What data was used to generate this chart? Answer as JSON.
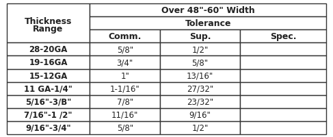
{
  "title_main": "Over 48\"-60\" Width",
  "title_sub": "Tolerance",
  "col_header": [
    "Comm.",
    "Sup.",
    "Spec."
  ],
  "row_header_label": [
    "Thickness",
    "Range"
  ],
  "rows": [
    [
      "28-20GA",
      "5/8\"",
      "1/2\"",
      ""
    ],
    [
      "19-16GA",
      "3/4\"",
      "5/8\"",
      ""
    ],
    [
      "15-12GA",
      "1\"",
      "13/16\"",
      ""
    ],
    [
      "11 GA-1/4\"",
      "1-1/16\"",
      "27/32\"",
      ""
    ],
    [
      "5/16\"-3/B\"",
      "7/8\"",
      "23/32\"",
      ""
    ],
    [
      "7/16\"-1 /2\"",
      "11/16\"",
      "9/16\"",
      ""
    ],
    [
      "9/16\"-3/4\"",
      "5/8\"",
      "1/2\"",
      ""
    ]
  ],
  "bg_color": "#f0f0f0",
  "header_bg": "#d8d8d8",
  "line_color": "#333333",
  "text_color": "#222222",
  "font_size": 8.5,
  "header_font_size": 9.0
}
